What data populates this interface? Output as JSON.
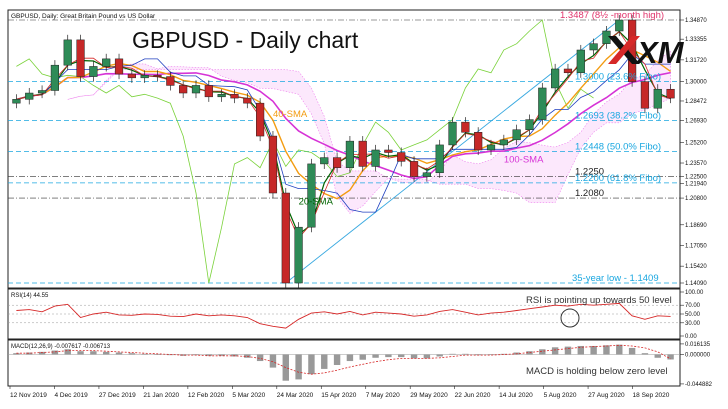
{
  "header": {
    "symbol_line": "GBPUSD, Daily:  Great Britain Pound vs US Dollar",
    "title": "GBPUSD - Daily chart",
    "logo": "XM"
  },
  "colors": {
    "candle_up": "#2e8b57",
    "candle_down": "#c62828",
    "sma20": "#006400",
    "sma40": "#f39c12",
    "sma100": "#d633d6",
    "tenkan": "#d62828",
    "kijun": "#1f3fbf",
    "chikou": "#7ad23a",
    "cloud": "#ee82ee",
    "fibo": "#1aa7e0",
    "trendline": "#39a9e0",
    "rsi": "#d62828",
    "macd": "#999999",
    "signal": "#d62828",
    "annot_red": "#e0336b"
  },
  "chart_data": [
    {
      "type": "line",
      "name": "price",
      "ylim": [
        1.1409,
        1.3487
      ],
      "dates": [
        "2019-11-12",
        "2019-11-20",
        "2019-11-28",
        "2019-12-06",
        "2019-12-14",
        "2019-12-20",
        "2019-12-27",
        "2020-01-03",
        "2020-01-10",
        "2020-01-17",
        "2020-01-21",
        "2020-01-28",
        "2020-02-04",
        "2020-02-11",
        "2020-02-18",
        "2020-02-25",
        "2020-03-02",
        "2020-03-05",
        "2020-03-09",
        "2020-03-12",
        "2020-03-16",
        "2020-03-20",
        "2020-03-24",
        "2020-03-27",
        "2020-04-01",
        "2020-04-07",
        "2020-04-14",
        "2020-04-21",
        "2020-04-28",
        "2020-05-05",
        "2020-05-11",
        "2020-05-18",
        "2020-05-25",
        "2020-06-01",
        "2020-06-08",
        "2020-06-15",
        "2020-06-22",
        "2020-06-29",
        "2020-07-06",
        "2020-07-14",
        "2020-07-21",
        "2020-07-28",
        "2020-08-04",
        "2020-08-11",
        "2020-08-18",
        "2020-08-25",
        "2020-09-01",
        "2020-09-04",
        "2020-09-09",
        "2020-09-14",
        "2020-09-18",
        "2020-09-22"
      ],
      "close": [
        1.286,
        1.291,
        1.293,
        1.313,
        1.333,
        1.304,
        1.312,
        1.318,
        1.306,
        1.303,
        1.305,
        1.304,
        1.297,
        1.291,
        1.297,
        1.288,
        1.29,
        1.287,
        1.283,
        1.257,
        1.212,
        1.1409,
        1.185,
        1.235,
        1.24,
        1.232,
        1.253,
        1.233,
        1.246,
        1.244,
        1.237,
        1.225,
        1.228,
        1.25,
        1.268,
        1.26,
        1.246,
        1.25,
        1.254,
        1.262,
        1.27,
        1.295,
        1.31,
        1.307,
        1.325,
        1.33,
        1.34,
        1.3487,
        1.3,
        1.279,
        1.294,
        1.287
      ],
      "levels": [
        {
          "label": "1.3487 (8½ -month high)",
          "value": 1.3487,
          "style": "dashed"
        },
        {
          "label": "1.3000 (23.6% Fibo)",
          "value": 1.3,
          "style": "fibo"
        },
        {
          "label": "1.2693 (38.2% Fibo)",
          "value": 1.2693,
          "style": "fibo"
        },
        {
          "label": "1.2448 (50.0% Fibo)",
          "value": 1.2448,
          "style": "fibo"
        },
        {
          "label": "1.2250",
          "value": 1.225,
          "style": "dashed"
        },
        {
          "label": "1.2200 (61.8% Fibo)",
          "value": 1.22,
          "style": "fibo"
        },
        {
          "label": "1.2080",
          "value": 1.208,
          "style": "dashed"
        },
        {
          "label": "35-year low - 1.1409",
          "value": 1.1409,
          "style": "fibo"
        }
      ],
      "ma_labels": {
        "sma40": "40-SMA",
        "sma20": "20-SMA",
        "sma100": "100-SMA"
      },
      "y_ticks": [
        {
          "label": "1.34870",
          "value": 1.3487
        },
        {
          "label": "1.33355",
          "value": 1.33355
        },
        {
          "label": "1.31720",
          "value": 1.3172
        },
        {
          "label": "1.30000",
          "value": 1.3
        },
        {
          "label": "1.28472",
          "value": 1.28472
        },
        {
          "label": "1.26930",
          "value": 1.2693
        },
        {
          "label": "1.25200",
          "value": 1.252
        },
        {
          "label": "1.23570",
          "value": 1.2357
        },
        {
          "label": "1.22500",
          "value": 1.225
        },
        {
          "label": "1.21940",
          "value": 1.2194
        },
        {
          "label": "1.20800",
          "value": 1.208
        },
        {
          "label": "1.18690",
          "value": 1.1869
        },
        {
          "label": "1.17050",
          "value": 1.1705
        },
        {
          "label": "1.15420",
          "value": 1.1542
        },
        {
          "label": "1.14090",
          "value": 1.1409
        }
      ]
    },
    {
      "type": "line",
      "name": "rsi",
      "label": "RSI(14) 44.55",
      "ylim": [
        0,
        100
      ],
      "values": [
        58,
        60,
        55,
        68,
        72,
        42,
        50,
        54,
        48,
        47,
        50,
        49,
        45,
        44,
        50,
        46,
        48,
        46,
        42,
        28,
        22,
        18,
        38,
        52,
        55,
        50,
        56,
        48,
        54,
        52,
        50,
        45,
        48,
        56,
        60,
        54,
        48,
        52,
        54,
        58,
        62,
        66,
        70,
        68,
        72,
        70,
        72,
        74,
        46,
        38,
        46,
        44.55
      ],
      "y_ticks": [
        {
          "label": "100.00",
          "value": 100
        },
        {
          "label": "70.00",
          "value": 70
        },
        {
          "label": "50.00",
          "value": 50
        },
        {
          "label": "30.00",
          "value": 30
        },
        {
          "label": "0.00",
          "value": 0
        }
      ],
      "annotation": "RSI is pointing up towards 50 level"
    },
    {
      "type": "line",
      "name": "macd",
      "label": "MACD(12,26,9) -0.007617 -0.006713",
      "ylim": [
        -0.045,
        0.016
      ],
      "values": [
        0.002,
        0.003,
        0.004,
        0.006,
        0.008,
        0.005,
        0.005,
        0.004,
        0.003,
        0.002,
        0.001,
        0.0,
        -0.001,
        -0.002,
        -0.001,
        -0.002,
        -0.002,
        -0.003,
        -0.005,
        -0.01,
        -0.02,
        -0.04,
        -0.038,
        -0.03,
        -0.022,
        -0.016,
        -0.01,
        -0.008,
        -0.005,
        -0.004,
        -0.004,
        -0.006,
        -0.006,
        -0.003,
        0.001,
        0.001,
        -0.001,
        0.0,
        0.001,
        0.003,
        0.005,
        0.008,
        0.011,
        0.012,
        0.013,
        0.013,
        0.014,
        0.015,
        0.01,
        0.002,
        -0.005,
        -0.007617
      ],
      "signal": [
        0.002,
        0.002,
        0.003,
        0.004,
        0.006,
        0.006,
        0.006,
        0.005,
        0.004,
        0.003,
        0.002,
        0.001,
        0.0,
        -0.001,
        -0.001,
        -0.002,
        -0.002,
        -0.002,
        -0.003,
        -0.006,
        -0.011,
        -0.02,
        -0.027,
        -0.03,
        -0.028,
        -0.024,
        -0.019,
        -0.015,
        -0.011,
        -0.008,
        -0.006,
        -0.006,
        -0.006,
        -0.005,
        -0.003,
        -0.001,
        -0.001,
        -0.001,
        0.0,
        0.001,
        0.003,
        0.005,
        0.007,
        0.009,
        0.011,
        0.012,
        0.013,
        0.014,
        0.013,
        0.01,
        0.004,
        -0.006713
      ],
      "y_ticks": [
        {
          "label": "0.016135",
          "value": 0.016135
        },
        {
          "label": "0.000000",
          "value": 0
        },
        {
          "label": "-0.044882",
          "value": -0.044882
        }
      ],
      "annotation": "MACD is holding below zero level"
    }
  ],
  "x_axis": {
    "labels": [
      "12 Nov 2019",
      "4 Dec 2019",
      "27 Dec 2019",
      "21 Jan 2020",
      "12 Feb 2020",
      "5 Mar 2020",
      "24 Mar 2020",
      "15 Apr 2020",
      "7 May 2020",
      "29 May 2020",
      "22 Jun 2020",
      "14 Jul 2020",
      "5 Aug 2020",
      "27 Aug 2020",
      "18 Sep 2020"
    ]
  }
}
